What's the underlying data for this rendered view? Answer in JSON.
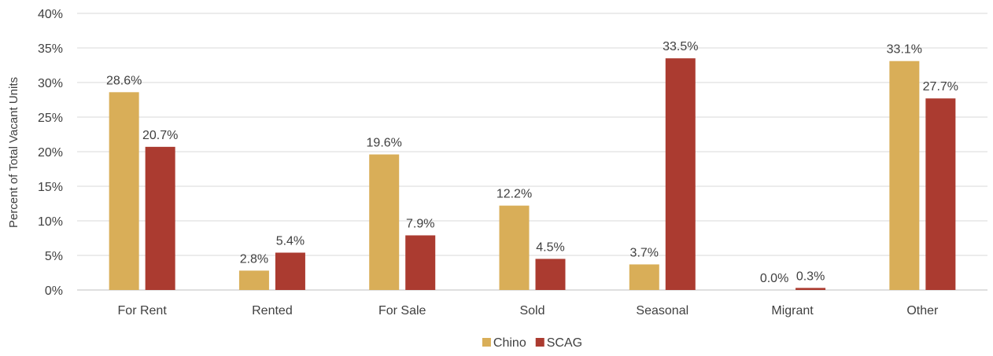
{
  "chart_data": {
    "type": "bar",
    "title": "",
    "xlabel": "",
    "ylabel": "Percent of Total Vacant Units",
    "ylim": [
      0,
      40
    ],
    "ytick_step": 5,
    "ytick_labels": [
      "0%",
      "5%",
      "10%",
      "15%",
      "20%",
      "25%",
      "30%",
      "35%",
      "40%"
    ],
    "grid": true,
    "legend_position": "bottom",
    "categories": [
      "For Rent",
      "Rented",
      "For Sale",
      "Sold",
      "Seasonal",
      "Migrant",
      "Other"
    ],
    "series": [
      {
        "name": "Chino",
        "color": "#D9AE58",
        "values": [
          28.6,
          2.8,
          19.6,
          12.2,
          3.7,
          0.0,
          33.1
        ],
        "labels": [
          "28.6%",
          "2.8%",
          "19.6%",
          "12.2%",
          "3.7%",
          "0.0%",
          "33.1%"
        ]
      },
      {
        "name": "SCAG",
        "color": "#AB3B30",
        "values": [
          20.7,
          5.4,
          7.9,
          4.5,
          33.5,
          0.3,
          27.7
        ],
        "labels": [
          "20.7%",
          "5.4%",
          "7.9%",
          "4.5%",
          "33.5%",
          "0.3%",
          "27.7%"
        ]
      }
    ]
  }
}
